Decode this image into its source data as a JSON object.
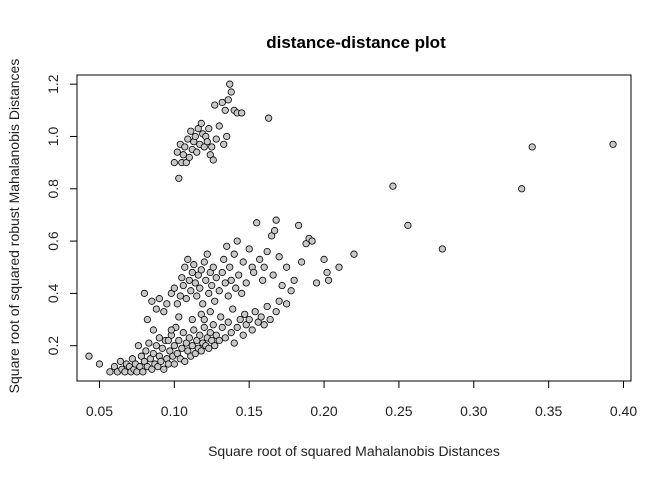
{
  "chart_data": {
    "type": "scatter",
    "title": "distance-distance plot",
    "xlabel": "Square root of squared Mahalanobis Distances",
    "ylabel": "Square root of squared robust Mahalanobis Distances",
    "xlim": [
      0.035,
      0.405
    ],
    "ylim": [
      0.065,
      1.235
    ],
    "xticks": [
      "0.05",
      "0.10",
      "0.15",
      "0.20",
      "0.25",
      "0.30",
      "0.35",
      "0.40"
    ],
    "yticks": [
      "0.2",
      "0.4",
      "0.6",
      "0.8",
      "1.0",
      "1.2"
    ],
    "grid": false,
    "legend": "none",
    "marker_fill": "#c8c8c8",
    "marker_stroke": "#000000",
    "series": [
      {
        "values_xy": [
          [
            0.043,
            0.16
          ],
          [
            0.05,
            0.13
          ],
          [
            0.057,
            0.1
          ],
          [
            0.06,
            0.12
          ],
          [
            0.062,
            0.1
          ],
          [
            0.064,
            0.14
          ],
          [
            0.065,
            0.11
          ],
          [
            0.067,
            0.1
          ],
          [
            0.068,
            0.13
          ],
          [
            0.07,
            0.12
          ],
          [
            0.071,
            0.1
          ],
          [
            0.072,
            0.15
          ],
          [
            0.073,
            0.11
          ],
          [
            0.074,
            0.13
          ],
          [
            0.075,
            0.1
          ],
          [
            0.076,
            0.2
          ],
          [
            0.077,
            0.12
          ],
          [
            0.078,
            0.16
          ],
          [
            0.079,
            0.1
          ],
          [
            0.08,
            0.14
          ],
          [
            0.081,
            0.18
          ],
          [
            0.082,
            0.12
          ],
          [
            0.083,
            0.21
          ],
          [
            0.084,
            0.15
          ],
          [
            0.085,
            0.11
          ],
          [
            0.086,
            0.17
          ],
          [
            0.087,
            0.13
          ],
          [
            0.088,
            0.2
          ],
          [
            0.089,
            0.12
          ],
          [
            0.09,
            0.16
          ],
          [
            0.091,
            0.14
          ],
          [
            0.092,
            0.19
          ],
          [
            0.093,
            0.11
          ],
          [
            0.094,
            0.22
          ],
          [
            0.095,
            0.15
          ],
          [
            0.096,
            0.13
          ],
          [
            0.097,
            0.18
          ],
          [
            0.098,
            0.24
          ],
          [
            0.099,
            0.16
          ],
          [
            0.1,
            0.2
          ],
          [
            0.1,
            0.13
          ],
          [
            0.101,
            0.27
          ],
          [
            0.102,
            0.17
          ],
          [
            0.103,
            0.22
          ],
          [
            0.104,
            0.15
          ],
          [
            0.105,
            0.19
          ],
          [
            0.106,
            0.25
          ],
          [
            0.107,
            0.14
          ],
          [
            0.108,
            0.21
          ],
          [
            0.109,
            0.18
          ],
          [
            0.11,
            0.23
          ],
          [
            0.111,
            0.16
          ],
          [
            0.112,
            0.2
          ],
          [
            0.113,
            0.26
          ],
          [
            0.114,
            0.17
          ],
          [
            0.115,
            0.22
          ],
          [
            0.116,
            0.19
          ],
          [
            0.117,
            0.24
          ],
          [
            0.118,
            0.18
          ],
          [
            0.119,
            0.21
          ],
          [
            0.12,
            0.27
          ],
          [
            0.121,
            0.2
          ],
          [
            0.122,
            0.23
          ],
          [
            0.123,
            0.19
          ],
          [
            0.124,
            0.25
          ],
          [
            0.125,
            0.22
          ],
          [
            0.126,
            0.28
          ],
          [
            0.127,
            0.2
          ],
          [
            0.128,
            0.24
          ],
          [
            0.13,
            0.22
          ],
          [
            0.132,
            0.27
          ],
          [
            0.134,
            0.23
          ],
          [
            0.136,
            0.29
          ],
          [
            0.138,
            0.25
          ],
          [
            0.14,
            0.21
          ],
          [
            0.142,
            0.27
          ],
          [
            0.144,
            0.3
          ],
          [
            0.146,
            0.24
          ],
          [
            0.148,
            0.28
          ],
          [
            0.15,
            0.3
          ],
          [
            0.152,
            0.26
          ],
          [
            0.154,
            0.33
          ],
          [
            0.156,
            0.29
          ],
          [
            0.158,
            0.31
          ],
          [
            0.16,
            0.28
          ],
          [
            0.162,
            0.35
          ],
          [
            0.164,
            0.3
          ],
          [
            0.168,
            0.33
          ],
          [
            0.17,
            0.37
          ],
          [
            0.175,
            0.36
          ],
          [
            0.08,
            0.4
          ],
          [
            0.085,
            0.37
          ],
          [
            0.088,
            0.34
          ],
          [
            0.09,
            0.38
          ],
          [
            0.093,
            0.33
          ],
          [
            0.095,
            0.36
          ],
          [
            0.098,
            0.4
          ],
          [
            0.1,
            0.42
          ],
          [
            0.102,
            0.36
          ],
          [
            0.104,
            0.39
          ],
          [
            0.105,
            0.46
          ],
          [
            0.106,
            0.43
          ],
          [
            0.107,
            0.5
          ],
          [
            0.108,
            0.38
          ],
          [
            0.109,
            0.53
          ],
          [
            0.11,
            0.45
          ],
          [
            0.111,
            0.41
          ],
          [
            0.112,
            0.48
          ],
          [
            0.113,
            0.51
          ],
          [
            0.114,
            0.44
          ],
          [
            0.115,
            0.39
          ],
          [
            0.116,
            0.47
          ],
          [
            0.117,
            0.42
          ],
          [
            0.118,
            0.49
          ],
          [
            0.119,
            0.36
          ],
          [
            0.12,
            0.52
          ],
          [
            0.121,
            0.45
          ],
          [
            0.122,
            0.55
          ],
          [
            0.123,
            0.4
          ],
          [
            0.124,
            0.48
          ],
          [
            0.125,
            0.43
          ],
          [
            0.126,
            0.5
          ],
          [
            0.127,
            0.37
          ],
          [
            0.128,
            0.46
          ],
          [
            0.13,
            0.41
          ],
          [
            0.132,
            0.48
          ],
          [
            0.133,
            0.53
          ],
          [
            0.134,
            0.44
          ],
          [
            0.135,
            0.58
          ],
          [
            0.136,
            0.39
          ],
          [
            0.137,
            0.5
          ],
          [
            0.138,
            0.45
          ],
          [
            0.14,
            0.55
          ],
          [
            0.141,
            0.42
          ],
          [
            0.142,
            0.6
          ],
          [
            0.143,
            0.47
          ],
          [
            0.145,
            0.4
          ],
          [
            0.146,
            0.52
          ],
          [
            0.148,
            0.44
          ],
          [
            0.15,
            0.57
          ],
          [
            0.152,
            0.5
          ],
          [
            0.153,
            0.48
          ],
          [
            0.155,
            0.67
          ],
          [
            0.157,
            0.53
          ],
          [
            0.159,
            0.45
          ],
          [
            0.16,
            0.5
          ],
          [
            0.162,
            0.56
          ],
          [
            0.165,
            0.62
          ],
          [
            0.166,
            0.47
          ],
          [
            0.167,
            0.64
          ],
          [
            0.168,
            0.68
          ],
          [
            0.17,
            0.54
          ],
          [
            0.172,
            0.43
          ],
          [
            0.175,
            0.5
          ],
          [
            0.178,
            0.41
          ],
          [
            0.18,
            0.45
          ],
          [
            0.183,
            0.66
          ],
          [
            0.185,
            0.52
          ],
          [
            0.188,
            0.59
          ],
          [
            0.19,
            0.61
          ],
          [
            0.192,
            0.6
          ],
          [
            0.195,
            0.44
          ],
          [
            0.2,
            0.53
          ],
          [
            0.202,
            0.48
          ],
          [
            0.203,
            0.45
          ],
          [
            0.21,
            0.5
          ],
          [
            0.22,
            0.55
          ],
          [
            0.098,
            0.26
          ],
          [
            0.103,
            0.31
          ],
          [
            0.112,
            0.3
          ],
          [
            0.118,
            0.32
          ],
          [
            0.124,
            0.33
          ],
          [
            0.131,
            0.31
          ],
          [
            0.139,
            0.34
          ],
          [
            0.147,
            0.32
          ],
          [
            0.096,
            0.22
          ],
          [
            0.09,
            0.23
          ],
          [
            0.086,
            0.26
          ],
          [
            0.082,
            0.3
          ],
          [
            0.12,
            0.3
          ],
          [
            0.102,
            0.94
          ],
          [
            0.103,
            0.84
          ],
          [
            0.104,
            0.97
          ],
          [
            0.105,
            0.9
          ],
          [
            0.106,
            0.93
          ],
          [
            0.107,
            0.96
          ],
          [
            0.108,
            0.9
          ],
          [
            0.109,
            0.99
          ],
          [
            0.11,
            0.92
          ],
          [
            0.111,
            1.02
          ],
          [
            0.112,
            0.95
          ],
          [
            0.113,
            0.98
          ],
          [
            0.114,
            1.0
          ],
          [
            0.115,
            0.94
          ],
          [
            0.116,
            1.03
          ],
          [
            0.117,
            0.97
          ],
          [
            0.118,
            1.05
          ],
          [
            0.119,
            1.01
          ],
          [
            0.12,
            0.96
          ],
          [
            0.121,
            1.0
          ],
          [
            0.122,
            0.98
          ],
          [
            0.123,
            1.03
          ],
          [
            0.124,
            0.93
          ],
          [
            0.125,
            0.96
          ],
          [
            0.126,
            0.91
          ],
          [
            0.127,
            1.12
          ],
          [
            0.128,
            0.99
          ],
          [
            0.13,
            1.04
          ],
          [
            0.132,
            1.13
          ],
          [
            0.133,
            0.97
          ],
          [
            0.134,
            1.1
          ],
          [
            0.135,
            1.0
          ],
          [
            0.136,
            1.14
          ],
          [
            0.137,
            1.2
          ],
          [
            0.138,
            1.17
          ],
          [
            0.14,
            1.1
          ],
          [
            0.142,
            1.09
          ],
          [
            0.145,
            1.09
          ],
          [
            0.163,
            1.07
          ],
          [
            0.1,
            0.9
          ],
          [
            0.246,
            0.81
          ],
          [
            0.256,
            0.66
          ],
          [
            0.279,
            0.57
          ],
          [
            0.332,
            0.8
          ],
          [
            0.339,
            0.96
          ],
          [
            0.393,
            0.97
          ]
        ]
      }
    ]
  }
}
